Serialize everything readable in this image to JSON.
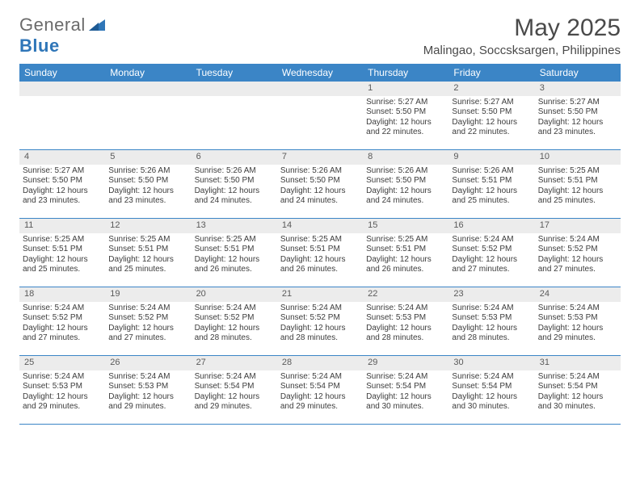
{
  "logo": {
    "text1": "General",
    "text2": "Blue"
  },
  "title": "May 2025",
  "location": "Malingao, Soccsksargen, Philippines",
  "colors": {
    "header_bg": "#3b85c6",
    "header_text": "#ffffff",
    "daynum_bg": "#ececec",
    "border": "#3b85c6",
    "text": "#3c3c3c",
    "logo_blue": "#2f76b8"
  },
  "layout": {
    "columns": 7,
    "rows": 5
  },
  "dow": [
    "Sunday",
    "Monday",
    "Tuesday",
    "Wednesday",
    "Thursday",
    "Friday",
    "Saturday"
  ],
  "weeks": [
    [
      {
        "blank": true
      },
      {
        "blank": true
      },
      {
        "blank": true
      },
      {
        "blank": true
      },
      {
        "n": "1",
        "sunrise": "Sunrise: 5:27 AM",
        "sunset": "Sunset: 5:50 PM",
        "day": "Daylight: 12 hours and 22 minutes."
      },
      {
        "n": "2",
        "sunrise": "Sunrise: 5:27 AM",
        "sunset": "Sunset: 5:50 PM",
        "day": "Daylight: 12 hours and 22 minutes."
      },
      {
        "n": "3",
        "sunrise": "Sunrise: 5:27 AM",
        "sunset": "Sunset: 5:50 PM",
        "day": "Daylight: 12 hours and 23 minutes."
      }
    ],
    [
      {
        "n": "4",
        "sunrise": "Sunrise: 5:27 AM",
        "sunset": "Sunset: 5:50 PM",
        "day": "Daylight: 12 hours and 23 minutes."
      },
      {
        "n": "5",
        "sunrise": "Sunrise: 5:26 AM",
        "sunset": "Sunset: 5:50 PM",
        "day": "Daylight: 12 hours and 23 minutes."
      },
      {
        "n": "6",
        "sunrise": "Sunrise: 5:26 AM",
        "sunset": "Sunset: 5:50 PM",
        "day": "Daylight: 12 hours and 24 minutes."
      },
      {
        "n": "7",
        "sunrise": "Sunrise: 5:26 AM",
        "sunset": "Sunset: 5:50 PM",
        "day": "Daylight: 12 hours and 24 minutes."
      },
      {
        "n": "8",
        "sunrise": "Sunrise: 5:26 AM",
        "sunset": "Sunset: 5:50 PM",
        "day": "Daylight: 12 hours and 24 minutes."
      },
      {
        "n": "9",
        "sunrise": "Sunrise: 5:26 AM",
        "sunset": "Sunset: 5:51 PM",
        "day": "Daylight: 12 hours and 25 minutes."
      },
      {
        "n": "10",
        "sunrise": "Sunrise: 5:25 AM",
        "sunset": "Sunset: 5:51 PM",
        "day": "Daylight: 12 hours and 25 minutes."
      }
    ],
    [
      {
        "n": "11",
        "sunrise": "Sunrise: 5:25 AM",
        "sunset": "Sunset: 5:51 PM",
        "day": "Daylight: 12 hours and 25 minutes."
      },
      {
        "n": "12",
        "sunrise": "Sunrise: 5:25 AM",
        "sunset": "Sunset: 5:51 PM",
        "day": "Daylight: 12 hours and 25 minutes."
      },
      {
        "n": "13",
        "sunrise": "Sunrise: 5:25 AM",
        "sunset": "Sunset: 5:51 PM",
        "day": "Daylight: 12 hours and 26 minutes."
      },
      {
        "n": "14",
        "sunrise": "Sunrise: 5:25 AM",
        "sunset": "Sunset: 5:51 PM",
        "day": "Daylight: 12 hours and 26 minutes."
      },
      {
        "n": "15",
        "sunrise": "Sunrise: 5:25 AM",
        "sunset": "Sunset: 5:51 PM",
        "day": "Daylight: 12 hours and 26 minutes."
      },
      {
        "n": "16",
        "sunrise": "Sunrise: 5:24 AM",
        "sunset": "Sunset: 5:52 PM",
        "day": "Daylight: 12 hours and 27 minutes."
      },
      {
        "n": "17",
        "sunrise": "Sunrise: 5:24 AM",
        "sunset": "Sunset: 5:52 PM",
        "day": "Daylight: 12 hours and 27 minutes."
      }
    ],
    [
      {
        "n": "18",
        "sunrise": "Sunrise: 5:24 AM",
        "sunset": "Sunset: 5:52 PM",
        "day": "Daylight: 12 hours and 27 minutes."
      },
      {
        "n": "19",
        "sunrise": "Sunrise: 5:24 AM",
        "sunset": "Sunset: 5:52 PM",
        "day": "Daylight: 12 hours and 27 minutes."
      },
      {
        "n": "20",
        "sunrise": "Sunrise: 5:24 AM",
        "sunset": "Sunset: 5:52 PM",
        "day": "Daylight: 12 hours and 28 minutes."
      },
      {
        "n": "21",
        "sunrise": "Sunrise: 5:24 AM",
        "sunset": "Sunset: 5:52 PM",
        "day": "Daylight: 12 hours and 28 minutes."
      },
      {
        "n": "22",
        "sunrise": "Sunrise: 5:24 AM",
        "sunset": "Sunset: 5:53 PM",
        "day": "Daylight: 12 hours and 28 minutes."
      },
      {
        "n": "23",
        "sunrise": "Sunrise: 5:24 AM",
        "sunset": "Sunset: 5:53 PM",
        "day": "Daylight: 12 hours and 28 minutes."
      },
      {
        "n": "24",
        "sunrise": "Sunrise: 5:24 AM",
        "sunset": "Sunset: 5:53 PM",
        "day": "Daylight: 12 hours and 29 minutes."
      }
    ],
    [
      {
        "n": "25",
        "sunrise": "Sunrise: 5:24 AM",
        "sunset": "Sunset: 5:53 PM",
        "day": "Daylight: 12 hours and 29 minutes."
      },
      {
        "n": "26",
        "sunrise": "Sunrise: 5:24 AM",
        "sunset": "Sunset: 5:53 PM",
        "day": "Daylight: 12 hours and 29 minutes."
      },
      {
        "n": "27",
        "sunrise": "Sunrise: 5:24 AM",
        "sunset": "Sunset: 5:54 PM",
        "day": "Daylight: 12 hours and 29 minutes."
      },
      {
        "n": "28",
        "sunrise": "Sunrise: 5:24 AM",
        "sunset": "Sunset: 5:54 PM",
        "day": "Daylight: 12 hours and 29 minutes."
      },
      {
        "n": "29",
        "sunrise": "Sunrise: 5:24 AM",
        "sunset": "Sunset: 5:54 PM",
        "day": "Daylight: 12 hours and 30 minutes."
      },
      {
        "n": "30",
        "sunrise": "Sunrise: 5:24 AM",
        "sunset": "Sunset: 5:54 PM",
        "day": "Daylight: 12 hours and 30 minutes."
      },
      {
        "n": "31",
        "sunrise": "Sunrise: 5:24 AM",
        "sunset": "Sunset: 5:54 PM",
        "day": "Daylight: 12 hours and 30 minutes."
      }
    ]
  ]
}
